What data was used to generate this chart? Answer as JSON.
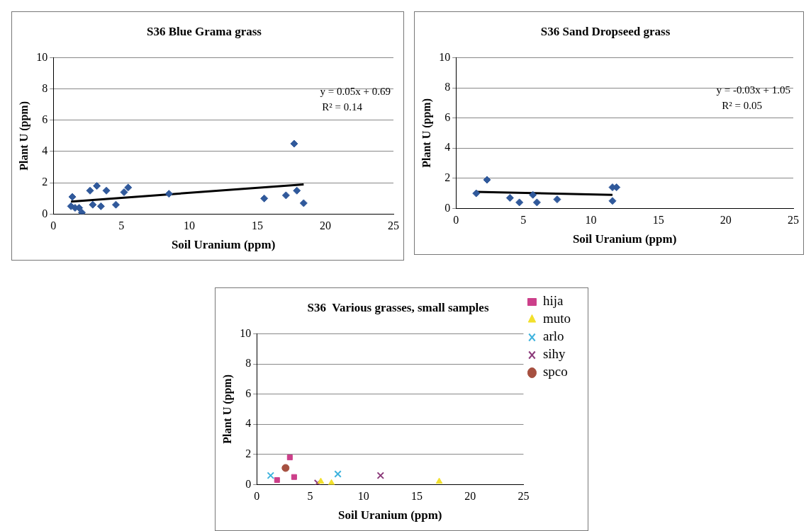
{
  "chart_data": [
    {
      "type": "scatter",
      "title": "S36 Blue Grama grass",
      "xlabel": "Soil Uranium (ppm)",
      "ylabel": "Plant U (ppm)",
      "xlim": [
        0,
        25
      ],
      "xticks": [
        0,
        5,
        10,
        15,
        20,
        25
      ],
      "ylim": [
        0,
        10
      ],
      "yticks": [
        0,
        2,
        4,
        6,
        8,
        10
      ],
      "grid": "y",
      "annotations": [
        "y = 0.05x + 0.69",
        "R² = 0.14"
      ],
      "series": [
        {
          "color": "#30599b",
          "marker": "diamond",
          "x": [
            1.3,
            1.4,
            1.6,
            1.9,
            2.1,
            2.7,
            3.2,
            2.9,
            3.5,
            3.9,
            4.6,
            5.2,
            5.5,
            8.5,
            15.5,
            17.1,
            17.7,
            17.9,
            18.4
          ],
          "values": [
            0.5,
            1.1,
            0.4,
            0.4,
            0.1,
            1.5,
            1.8,
            0.6,
            0.5,
            1.5,
            0.6,
            1.4,
            1.7,
            1.3,
            1.0,
            1.2,
            4.5,
            1.5,
            0.7
          ]
        },
        {
          "type": "line",
          "color": "#000000",
          "marker": "none",
          "x": [
            1.3,
            18.4
          ],
          "values": [
            0.8,
            1.9
          ]
        }
      ]
    },
    {
      "type": "scatter",
      "title": "S36 Sand Dropseed grass",
      "xlabel": "Soil Uranium (ppm)",
      "ylabel": "Plant U (ppm)",
      "xlim": [
        0,
        25
      ],
      "xticks": [
        0,
        5,
        10,
        15,
        20,
        25
      ],
      "ylim": [
        0,
        10
      ],
      "yticks": [
        0,
        2,
        4,
        6,
        8,
        10
      ],
      "grid": "y",
      "annotations": [
        "y = -0.03x + 1.05",
        "R² = 0.05"
      ],
      "series": [
        {
          "color": "#30599b",
          "marker": "diamond",
          "x": [
            1.5,
            2.3,
            4.0,
            4.7,
            5.7,
            6.0,
            7.5,
            11.6,
            11.9,
            11.6
          ],
          "values": [
            1.0,
            1.9,
            0.7,
            0.4,
            0.9,
            0.4,
            0.6,
            1.4,
            1.4,
            0.5
          ]
        },
        {
          "type": "line",
          "color": "#000000",
          "marker": "none",
          "x": [
            1.5,
            11.6
          ],
          "values": [
            1.1,
            0.9
          ]
        }
      ]
    },
    {
      "type": "scatter",
      "title": "S36  Various grasses, small samples",
      "xlabel": "Soil Uranium (ppm)",
      "ylabel": "Plant U (ppm)",
      "xlim": [
        0,
        25
      ],
      "xticks": [
        0,
        5,
        10,
        15,
        20,
        25
      ],
      "ylim": [
        0,
        10
      ],
      "yticks": [
        0,
        2,
        4,
        6,
        8,
        10
      ],
      "grid": "y",
      "legend": "right",
      "series": [
        {
          "name": "hija",
          "color": "#cc3f8a",
          "marker": "square",
          "x": [
            1.9,
            3.1,
            3.5
          ],
          "values": [
            0.3,
            1.8,
            0.5
          ]
        },
        {
          "name": "muto",
          "color": "#f2e02c",
          "marker": "triangle",
          "x": [
            6.0,
            7.0,
            17.1
          ],
          "values": [
            0.2,
            0.1,
            0.2
          ]
        },
        {
          "name": "arlo",
          "color": "#3fb3dd",
          "marker": "cross",
          "x": [
            1.3,
            7.6
          ],
          "values": [
            0.6,
            0.7
          ]
        },
        {
          "name": "sihy",
          "color": "#8b3a7a",
          "marker": "cross",
          "x": [
            5.7,
            11.6
          ],
          "values": [
            0.1,
            0.6
          ]
        },
        {
          "name": "spco",
          "color": "#a65040",
          "marker": "circle",
          "x": [
            2.7
          ],
          "values": [
            1.1
          ]
        }
      ]
    }
  ]
}
